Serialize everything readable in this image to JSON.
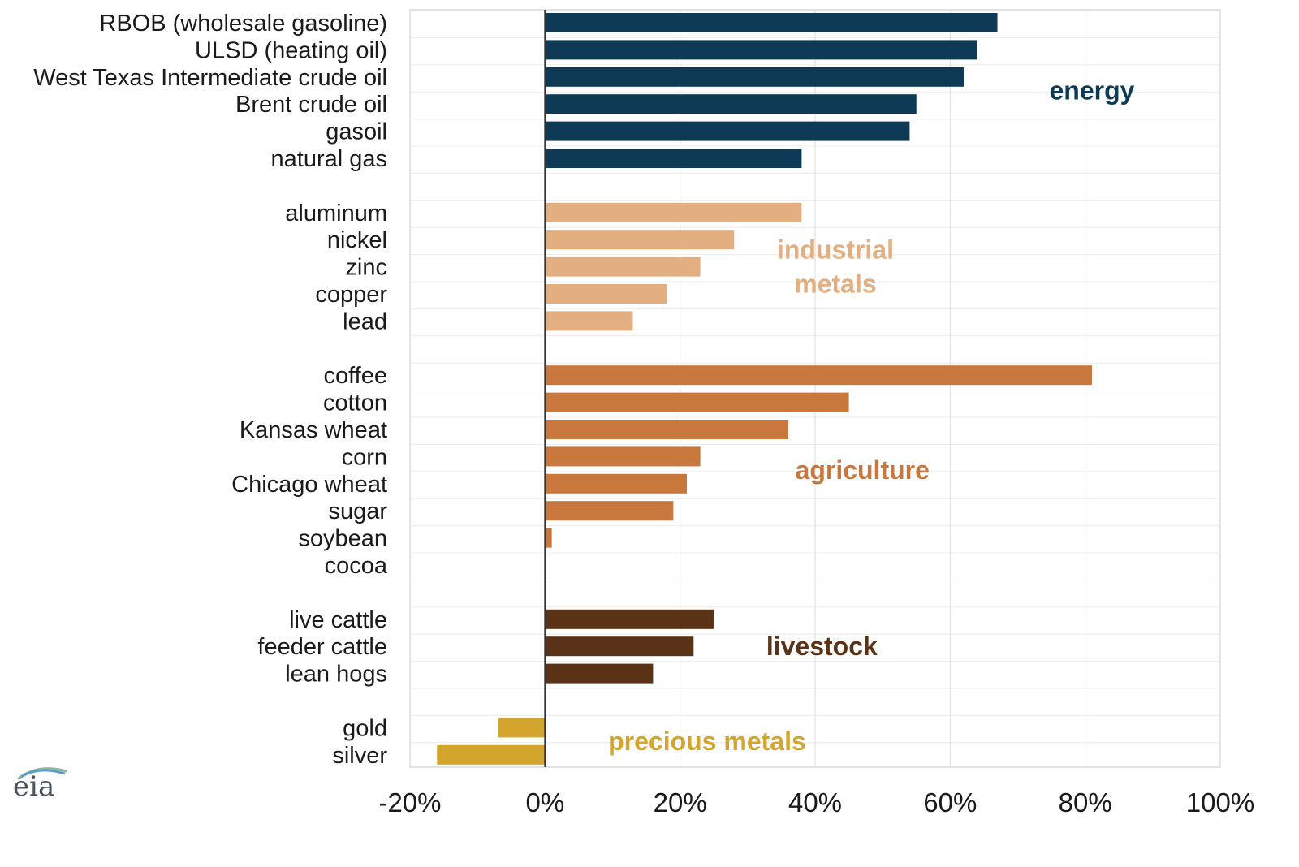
{
  "chart_data": {
    "type": "bar",
    "orientation": "horizontal",
    "x_ticks": [
      "-20%",
      "0%",
      "20%",
      "40%",
      "60%",
      "80%",
      "100%"
    ],
    "xlim": [
      -20,
      100
    ],
    "grid": true,
    "series": [
      {
        "name": "energy",
        "color": "#0e3a55",
        "categories": [
          "RBOB (wholesale gasoline)",
          "ULSD (heating oil)",
          "West Texas Intermediate crude oil",
          "Brent crude oil",
          "gasoil",
          "natural gas"
        ],
        "values": [
          67,
          64,
          62,
          55,
          54,
          38
        ]
      },
      {
        "name": "industrial metals",
        "label_lines": [
          "industrial",
          "metals"
        ],
        "color": "#e3ae80",
        "categories": [
          "aluminum",
          "nickel",
          "zinc",
          "copper",
          "lead"
        ],
        "values": [
          38,
          28,
          23,
          18,
          13
        ]
      },
      {
        "name": "agriculture",
        "color": "#c8783c",
        "categories": [
          "coffee",
          "cotton",
          "Kansas wheat",
          "corn",
          "Chicago wheat",
          "sugar",
          "soybean",
          "cocoa"
        ],
        "values": [
          81,
          45,
          36,
          23,
          21,
          19,
          1,
          0
        ]
      },
      {
        "name": "livestock",
        "color": "#5a3317",
        "categories": [
          "live cattle",
          "feeder cattle",
          "lean hogs"
        ],
        "values": [
          25,
          22,
          16
        ]
      },
      {
        "name": "precious metals",
        "color": "#d4a52c",
        "categories": [
          "gold",
          "silver"
        ],
        "values": [
          -7,
          -16
        ]
      }
    ]
  },
  "logo": {
    "text": "eia",
    "icon": "eia-logo-icon"
  }
}
